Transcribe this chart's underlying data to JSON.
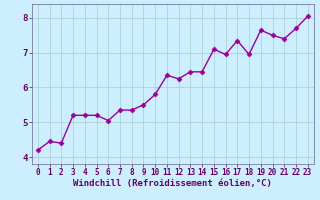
{
  "x": [
    0,
    1,
    2,
    3,
    4,
    5,
    6,
    7,
    8,
    9,
    10,
    11,
    12,
    13,
    14,
    15,
    16,
    17,
    18,
    19,
    20,
    21,
    22,
    23
  ],
  "y": [
    4.2,
    4.45,
    4.4,
    5.2,
    5.2,
    5.2,
    5.05,
    5.35,
    5.35,
    5.5,
    5.8,
    6.35,
    6.25,
    6.45,
    6.45,
    7.1,
    6.95,
    7.35,
    6.95,
    7.65,
    7.5,
    7.4,
    7.7,
    8.05
  ],
  "line_color": "#990099",
  "marker": "D",
  "markersize": 2.5,
  "linewidth": 1.0,
  "bg_color": "#cceeff",
  "grid_color": "#aacccc",
  "xlabel": "Windchill (Refroidissement éolien,°C)",
  "xlabel_fontsize": 6.5,
  "tick_fontsize": 6.0,
  "ylim": [
    3.8,
    8.4
  ],
  "xlim": [
    -0.5,
    23.5
  ],
  "yticks": [
    4,
    5,
    6,
    7,
    8
  ],
  "xticks": [
    0,
    1,
    2,
    3,
    4,
    5,
    6,
    7,
    8,
    9,
    10,
    11,
    12,
    13,
    14,
    15,
    16,
    17,
    18,
    19,
    20,
    21,
    22,
    23
  ]
}
